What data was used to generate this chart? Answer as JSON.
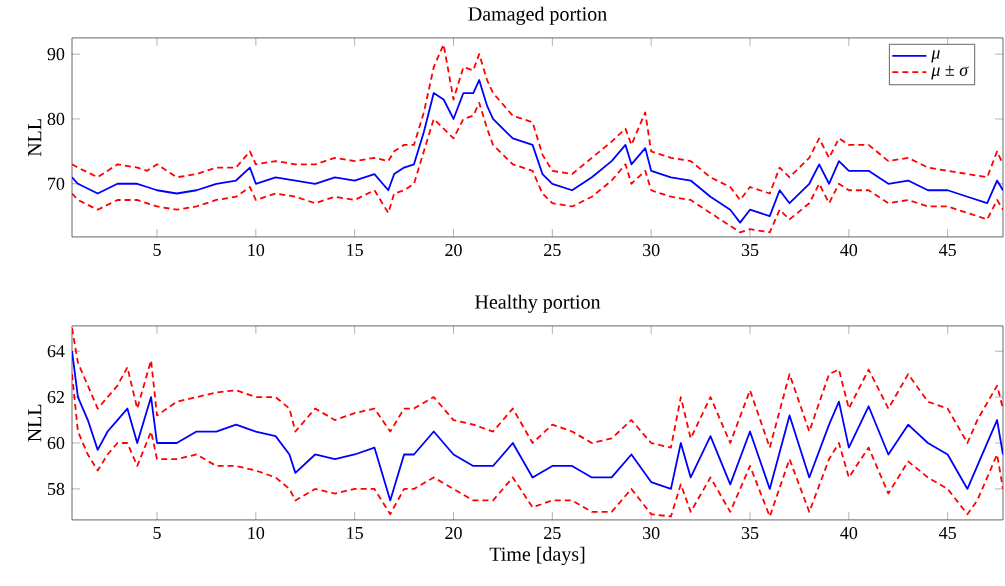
{
  "chart_data": [
    {
      "type": "line",
      "title": "Damaged portion",
      "ylabel": "NLL",
      "xlim": [
        0.7,
        47.8
      ],
      "ylim": [
        61.8,
        92.5
      ],
      "xticks": [
        5,
        10,
        15,
        20,
        25,
        30,
        35,
        40,
        45
      ],
      "yticks": [
        70,
        80,
        90
      ],
      "legend": "top right",
      "grid": false,
      "marker": "none",
      "x": [
        0.7,
        1,
        2,
        3,
        4,
        4.5,
        5,
        6,
        7,
        8,
        9,
        9.7,
        10,
        11,
        12,
        13,
        14,
        15,
        16,
        16.7,
        17,
        17.5,
        18,
        18.5,
        19,
        19.5,
        20,
        20.5,
        21,
        21.3,
        21.7,
        22,
        23,
        24,
        24.5,
        25,
        26,
        27,
        28,
        28.7,
        29,
        29.7,
        30,
        31,
        32,
        33,
        34,
        34.5,
        35,
        36,
        36.5,
        37,
        38,
        38.5,
        39,
        39.5,
        40,
        41,
        42,
        43,
        44,
        45,
        46,
        47,
        47.5,
        47.8
      ],
      "series": [
        {
          "name": "*μ*",
          "color": "#0000ff",
          "line_style": "solid",
          "values": [
            71,
            70,
            68.5,
            70,
            70,
            69.5,
            69,
            68.5,
            69,
            70,
            70.5,
            72.5,
            70,
            71,
            70.5,
            70,
            71,
            70.5,
            71.5,
            69,
            71.5,
            72.5,
            73,
            78,
            84,
            83,
            80,
            84,
            84,
            86,
            82,
            80,
            77,
            76,
            71.5,
            70,
            69,
            71,
            73.5,
            76,
            73,
            75.5,
            72,
            71,
            70.5,
            68,
            66,
            64,
            66,
            65,
            69,
            67,
            70,
            73,
            70,
            73.5,
            72,
            72,
            70,
            70.5,
            69,
            69,
            68,
            67,
            70.5,
            69
          ]
        },
        {
          "name": "*μ* ± *σ*",
          "color": "#ff0000",
          "line_style": "dashed",
          "values": [
            73,
            72.5,
            71,
            73,
            72.5,
            72,
            73,
            71,
            71.5,
            72.5,
            72.5,
            75,
            73,
            73.5,
            73,
            73,
            74,
            73.5,
            74,
            73.5,
            75,
            76,
            76,
            81,
            88,
            91.5,
            83,
            88,
            87.5,
            90,
            86,
            84,
            80.5,
            79.5,
            74.5,
            72,
            71.5,
            74,
            76.5,
            78.5,
            76,
            81,
            75,
            74,
            73.5,
            71,
            69.5,
            67.5,
            69.5,
            68.5,
            72.5,
            71,
            74,
            77,
            74,
            77,
            76,
            76,
            73.5,
            74,
            72.5,
            72,
            71.5,
            71,
            75,
            73
          ]
        },
        {
          "color": "#ff0000",
          "line_style": "dashed",
          "values": [
            68.5,
            67.5,
            66,
            67.5,
            67.5,
            67,
            66.5,
            66,
            66.5,
            67.5,
            68,
            69.5,
            67.5,
            68.5,
            68,
            67,
            68,
            67.5,
            69,
            65.5,
            68.5,
            69,
            70,
            75,
            80,
            78.5,
            77,
            80,
            80.5,
            82.5,
            78.5,
            76,
            73,
            72,
            68.5,
            67,
            66.5,
            68,
            70.5,
            73,
            70,
            72,
            69,
            68,
            67.5,
            65.5,
            63.5,
            62.5,
            63,
            62.5,
            66,
            64.5,
            67,
            70,
            67,
            70,
            69,
            69,
            67,
            67.5,
            66.5,
            66.5,
            65.5,
            64.5,
            67.5,
            66
          ]
        }
      ]
    },
    {
      "type": "line",
      "title": "Healthy portion",
      "xlabel": "Time [days]",
      "ylabel": "NLL",
      "xlim": [
        0.7,
        47.8
      ],
      "ylim": [
        56.65,
        65.1
      ],
      "xticks": [
        5,
        10,
        15,
        20,
        25,
        30,
        35,
        40,
        45
      ],
      "yticks": [
        58,
        60,
        62,
        64
      ],
      "grid": false,
      "marker": "none",
      "x": [
        0.7,
        1,
        1.5,
        2,
        2.5,
        3,
        3.5,
        4,
        4.7,
        5,
        6,
        7,
        8,
        9,
        10,
        11,
        11.7,
        12,
        13,
        14,
        15,
        16,
        16.8,
        17.5,
        18,
        19,
        20,
        21,
        22,
        23,
        24,
        25,
        26,
        27,
        28,
        29,
        30,
        31,
        31.5,
        32,
        33,
        34,
        35,
        36,
        37,
        38,
        39,
        39.5,
        40,
        41,
        42,
        43,
        44,
        45,
        46,
        46.5,
        47.5,
        47.8
      ],
      "series": [
        {
          "color": "#0000ff",
          "line_style": "solid",
          "values": [
            64,
            62,
            61,
            59.7,
            60.5,
            61,
            61.5,
            60,
            62,
            60,
            60,
            60.5,
            60.5,
            60.8,
            60.5,
            60.3,
            59.5,
            58.7,
            59.5,
            59.3,
            59.5,
            59.8,
            57.5,
            59.5,
            59.5,
            60.5,
            59.5,
            59,
            59,
            60,
            58.5,
            59,
            59,
            58.5,
            58.5,
            59.5,
            58.3,
            58,
            60,
            58.5,
            60.3,
            58.2,
            60.5,
            58,
            61.2,
            58.5,
            60.8,
            61.8,
            59.8,
            61.6,
            59.5,
            60.8,
            60,
            59.5,
            58,
            59,
            61,
            59.5
          ]
        },
        {
          "color": "#ff0000",
          "line_style": "dashed",
          "values": [
            65,
            63.5,
            62.5,
            61.5,
            62,
            62.5,
            63.3,
            61.5,
            63.6,
            61.2,
            61.8,
            62,
            62.2,
            62.3,
            62,
            62,
            61.5,
            60.5,
            61.5,
            61,
            61.3,
            61.5,
            60.5,
            61.5,
            61.5,
            62,
            61,
            60.8,
            60.5,
            61.5,
            60,
            60.8,
            60.5,
            60,
            60.2,
            61,
            60,
            59.8,
            62,
            60.2,
            62,
            60,
            62.3,
            59.8,
            63,
            60.5,
            63,
            63.2,
            61.5,
            63.2,
            61.5,
            63,
            61.8,
            61.5,
            60,
            61,
            62.5,
            61.5
          ]
        },
        {
          "color": "#ff0000",
          "line_style": "dashed",
          "values": [
            63,
            60.5,
            59.5,
            58.8,
            59.5,
            60,
            60,
            59,
            60.5,
            59.3,
            59.3,
            59.5,
            59,
            59,
            58.8,
            58.5,
            58,
            57.5,
            58,
            57.8,
            58,
            58,
            56.9,
            58,
            58,
            58.5,
            58,
            57.5,
            57.5,
            58.5,
            57.2,
            57.5,
            57.5,
            57,
            57,
            58,
            56.9,
            56.8,
            58.2,
            57,
            58.5,
            57,
            59,
            56.8,
            59.3,
            57,
            59.3,
            60,
            58.5,
            59.8,
            57.8,
            59.2,
            58.5,
            58,
            56.9,
            57.5,
            59.5,
            58
          ]
        }
      ]
    }
  ]
}
